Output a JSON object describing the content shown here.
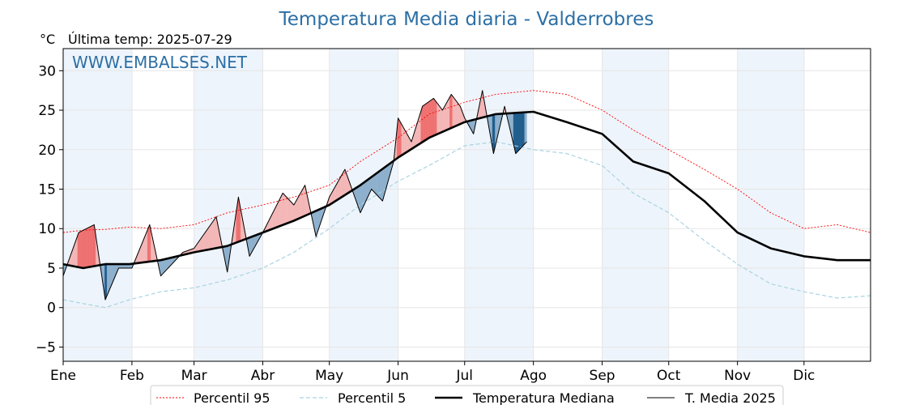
{
  "chart_data": {
    "type": "line",
    "title": "Temperatura Media diaria - Valderrobres",
    "unit_label": "°C",
    "last_update": "Última temp: 2025-07-29",
    "watermark": "WWW.EMBALSES.NET",
    "ylim": [
      -6.8,
      32.8
    ],
    "y_ticks": [
      -5,
      0,
      5,
      10,
      15,
      20,
      25,
      30
    ],
    "x_tick_labels": [
      "Ene",
      "Feb",
      "Mar",
      "Abr",
      "May",
      "Jun",
      "Jul",
      "Ago",
      "Sep",
      "Oct",
      "Nov",
      "Dic"
    ],
    "month_start_days": [
      1,
      32,
      60,
      91,
      121,
      152,
      182,
      213,
      244,
      274,
      305,
      335
    ],
    "grid": true,
    "legend_position": "bottom-center",
    "colors": {
      "p95": "#ff0000",
      "p5": "#a8d4e2",
      "median": "#000000",
      "current": "#000000",
      "above_fill": "#f4b6b6",
      "above_fill_strong": "#ef6e6e",
      "below_fill": "#8cafcc",
      "below_fill_strong": "#1c5a8c",
      "band": "#eef4fb",
      "title": "#2c6fa5",
      "watermark": "#2c6fa5"
    },
    "series": [
      {
        "name": "Percentil 95",
        "style": "dotted-red",
        "days": [
          1,
          10,
          20,
          31,
          45,
          60,
          75,
          91,
          105,
          121,
          135,
          152,
          166,
          182,
          196,
          213,
          228,
          244,
          258,
          274,
          290,
          305,
          320,
          335,
          350,
          365
        ],
        "values": [
          9.5,
          9.8,
          9.9,
          10.2,
          10.0,
          10.5,
          12.0,
          13.0,
          14.0,
          15.5,
          18.5,
          21.5,
          24.5,
          26.0,
          27.0,
          27.5,
          27.0,
          25.0,
          22.5,
          20.0,
          17.5,
          15.0,
          12.0,
          10.0,
          10.5,
          9.5
        ]
      },
      {
        "name": "Percentil 5",
        "style": "dashed-lightblue",
        "days": [
          1,
          10,
          20,
          31,
          45,
          60,
          75,
          91,
          105,
          121,
          135,
          152,
          166,
          182,
          196,
          213,
          228,
          244,
          258,
          274,
          290,
          305,
          320,
          335,
          350,
          365
        ],
        "values": [
          1.0,
          0.5,
          0.0,
          1.0,
          2.0,
          2.5,
          3.5,
          5.0,
          7.0,
          10.0,
          13.0,
          16.0,
          18.0,
          20.5,
          21.0,
          20.0,
          19.5,
          18.0,
          14.5,
          12.0,
          8.5,
          5.5,
          3.0,
          2.0,
          1.2,
          1.5
        ]
      },
      {
        "name": "Temperatura Mediana",
        "style": "thick-black",
        "days": [
          1,
          10,
          20,
          31,
          45,
          60,
          75,
          91,
          105,
          121,
          135,
          152,
          166,
          182,
          196,
          213,
          228,
          244,
          258,
          274,
          290,
          305,
          320,
          335,
          350,
          365
        ],
        "values": [
          5.5,
          5.0,
          5.5,
          5.5,
          6.0,
          7.0,
          7.8,
          9.5,
          11.0,
          13.0,
          15.5,
          19.0,
          21.5,
          23.5,
          24.5,
          24.8,
          23.5,
          22.0,
          18.5,
          17.0,
          13.5,
          9.5,
          7.5,
          6.5,
          6.0,
          6.0
        ]
      },
      {
        "name": "T. Media 2025",
        "style": "thin-black",
        "days": [
          1,
          8,
          15,
          20,
          26,
          32,
          40,
          45,
          55,
          60,
          70,
          75,
          80,
          85,
          91,
          100,
          105,
          110,
          115,
          121,
          128,
          135,
          140,
          145,
          150,
          152,
          158,
          163,
          168,
          172,
          176,
          180,
          182,
          186,
          190,
          195,
          200,
          205,
          210
        ],
        "values": [
          4.0,
          9.5,
          10.5,
          1.0,
          5.0,
          5.0,
          10.5,
          4.0,
          7.0,
          7.5,
          11.5,
          4.5,
          14.0,
          6.5,
          9.5,
          14.5,
          13.0,
          15.5,
          9.0,
          14.0,
          17.5,
          12.0,
          15.0,
          13.5,
          18.5,
          24.0,
          21.0,
          25.5,
          26.5,
          25.0,
          27.0,
          25.5,
          24.0,
          22.0,
          27.5,
          19.5,
          25.5,
          19.5,
          21.0
        ]
      }
    ]
  }
}
